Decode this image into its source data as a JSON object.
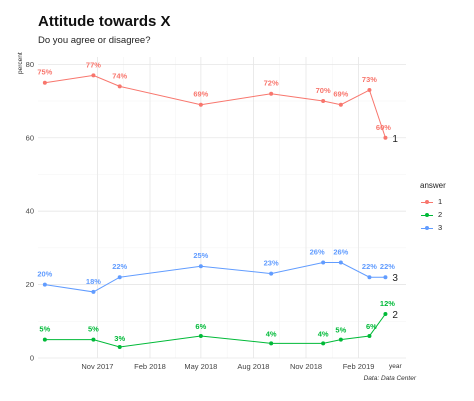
{
  "chart_data": {
    "type": "line",
    "title": "Attitude towards X",
    "subtitle": "Do you agree or disagree?",
    "xlabel": "year",
    "ylabel": "percent",
    "caption": "Data: Data Center",
    "ylim": [
      0,
      82
    ],
    "xlim": [
      "2017-07-20",
      "2019-04-25"
    ],
    "y_ticks": [
      0,
      20,
      40,
      60,
      80
    ],
    "x_ticks": [
      {
        "date": "2017-11-01",
        "label": "Nov 2017"
      },
      {
        "date": "2018-02-01",
        "label": "Feb 2018"
      },
      {
        "date": "2018-05-01",
        "label": "May 2018"
      },
      {
        "date": "2018-08-01",
        "label": "Aug 2018"
      },
      {
        "date": "2018-11-01",
        "label": "Nov 2018"
      },
      {
        "date": "2019-02-01",
        "label": "Feb 2019"
      }
    ],
    "grid": true,
    "legend": {
      "title": "answer",
      "position": "right"
    },
    "series": [
      {
        "name": "1",
        "color": "#F8766D",
        "end_label": "1",
        "x": [
          "2017-08-01",
          "2017-10-25",
          "2017-12-10",
          "2018-05-01",
          "2018-09-01",
          "2018-12-01",
          "2019-01-01",
          "2019-02-20",
          "2019-03-20"
        ],
        "values": [
          75,
          77,
          74,
          69,
          72,
          70,
          69,
          73,
          60
        ],
        "labels": [
          "75%",
          "77%",
          "74%",
          "69%",
          "72%",
          "70%",
          "69%",
          "73%",
          "60%"
        ]
      },
      {
        "name": "2",
        "color": "#00BA38",
        "end_label": "2",
        "x": [
          "2017-08-01",
          "2017-10-25",
          "2017-12-10",
          "2018-05-01",
          "2018-09-01",
          "2018-12-01",
          "2019-01-01",
          "2019-02-20",
          "2019-03-20"
        ],
        "values": [
          5,
          5,
          3,
          6,
          4,
          4,
          5,
          6,
          12
        ],
        "labels": [
          "5%",
          "5%",
          "3%",
          "6%",
          "4%",
          "4%",
          "5%",
          "6%",
          "12%"
        ]
      },
      {
        "name": "3",
        "color": "#619CFF",
        "end_label": "3",
        "x": [
          "2017-08-01",
          "2017-10-25",
          "2017-12-10",
          "2018-05-01",
          "2018-09-01",
          "2018-12-01",
          "2019-01-01",
          "2019-02-20",
          "2019-03-20"
        ],
        "values": [
          20,
          18,
          22,
          25,
          23,
          26,
          26,
          22,
          22
        ],
        "labels": [
          "20%",
          "18%",
          "22%",
          "25%",
          "23%",
          "26%",
          "26%",
          "22%",
          "22%"
        ]
      }
    ]
  }
}
